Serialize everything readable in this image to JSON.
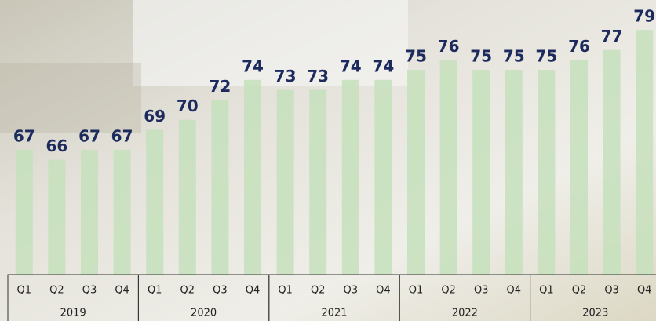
{
  "chart_data": {
    "type": "bar",
    "categories": [
      "Q1",
      "Q2",
      "Q3",
      "Q4",
      "Q1",
      "Q2",
      "Q3",
      "Q4",
      "Q1",
      "Q2",
      "Q3",
      "Q4",
      "Q1",
      "Q2",
      "Q3",
      "Q4",
      "Q1",
      "Q2",
      "Q3",
      "Q4"
    ],
    "groups": [
      "2019",
      "2020",
      "2021",
      "2022",
      "2023"
    ],
    "values": [
      67,
      66,
      67,
      67,
      69,
      70,
      72,
      74,
      73,
      73,
      74,
      74,
      75,
      76,
      75,
      75,
      75,
      76,
      77,
      79
    ],
    "color": "#c6e0bc",
    "ylim": [
      54.5,
      82
    ]
  }
}
